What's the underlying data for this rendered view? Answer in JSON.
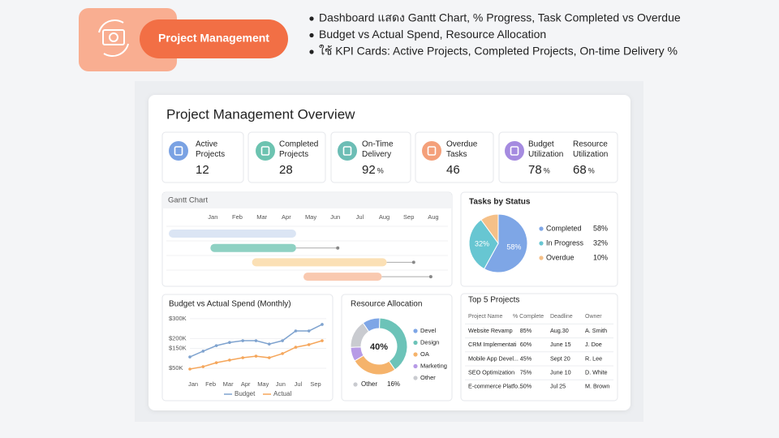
{
  "header": {
    "badge": "Project Management",
    "bullets": [
      "Dashboard แสดง Gantt Chart, % Progress, Task Completed vs Overdue",
      "Budget vs Actual Spend, Resource Allocation",
      "ใช้ KPI Cards: Active Projects, Completed Projects, On-time Delivery %"
    ]
  },
  "dashboard": {
    "title": "Project Management Overview",
    "kpis": [
      {
        "label": [
          "Active",
          "Projects"
        ],
        "value": 12,
        "color": "#7aa2e3"
      },
      {
        "label": [
          "Completed",
          "Projects"
        ],
        "value": 28,
        "color": "#6cc3b0"
      },
      {
        "label": [
          "On-Time",
          "Delivery"
        ],
        "value": 92,
        "unit": "%",
        "color": "#6cbdb5"
      },
      {
        "label": [
          "Overdue",
          "Tasks"
        ],
        "value": 46,
        "color": "#f4a07a"
      },
      {
        "label": [
          "Budget",
          "Utilization"
        ],
        "value": 78,
        "unit": "%",
        "color": "#a58be0"
      },
      {
        "label": [
          "Resource",
          "Utilization"
        ],
        "value": 68,
        "unit": "%"
      }
    ],
    "gantt": {
      "title": "Gantt Chart",
      "months": [
        "Jan",
        "Feb",
        "Mar",
        "Apr",
        "May",
        "Jun",
        "Jul",
        "Aug",
        "Sep",
        "Aug"
      ],
      "xlim": [
        -1.9,
        9.6
      ],
      "tasks": [
        {
          "start": -1.8,
          "end": 3.4,
          "color": "#dbe5f4"
        },
        {
          "start": -0.1,
          "end": 3.4,
          "line_end": 5.1,
          "color": "#8fd1c3"
        },
        {
          "start": 1.6,
          "end": 7.1,
          "line_end": 8.2,
          "color": "#fbe0b5"
        },
        {
          "start": 3.7,
          "end": 6.9,
          "line_end": 8.9,
          "color": "#f9c9b0"
        }
      ]
    },
    "status": {
      "title": "Tasks by Status",
      "names": [
        "Completed",
        "In Progress",
        "Overdue"
      ],
      "values": [
        58,
        32,
        10
      ],
      "value_labels": [
        "58%",
        "32%",
        "10%"
      ],
      "colors": [
        "#7ea6e6",
        "#67c6d2",
        "#f5c088"
      ]
    },
    "budget": {
      "title": "Budget vs Actual Spend (Monthly)",
      "ylim": [
        30000,
        320000
      ],
      "yticks": [
        {
          "value": 300000,
          "label": "$300K"
        },
        {
          "value": 200000,
          "label": "$200K"
        },
        {
          "value": 150000,
          "label": "$150K"
        },
        {
          "value": 50000,
          "label": "$50K"
        }
      ],
      "xtick_labels": [
        "Jan",
        "Feb",
        "Mar",
        "Apr",
        "May",
        "Jun",
        "Jul",
        "Sep"
      ],
      "series": [
        {
          "name": "Budget",
          "color": "#7fa3cf",
          "values": [
            107000,
            136000,
            164000,
            180000,
            189000,
            189000,
            172000,
            189000,
            238000,
            238000,
            271000
          ]
        },
        {
          "name": "Actual",
          "color": "#f5a65b",
          "values": [
            46000,
            58000,
            78000,
            91000,
            103000,
            111000,
            103000,
            124000,
            156000,
            169000,
            189000
          ]
        }
      ]
    },
    "resources": {
      "title": "Resource Allocation",
      "names": [
        "Devel",
        "Design",
        "OA",
        "Marketing",
        "Other"
      ],
      "values": [
        10,
        40,
        26,
        8,
        16
      ],
      "value_labels": [
        null,
        "40%",
        null,
        null,
        "16%"
      ],
      "colors": [
        "#7ea6e6",
        "#6cc3b8",
        "#f5b36b",
        "#b79be6",
        "#c9cbd0"
      ]
    },
    "top_projects": {
      "title": "Top 5 Projects",
      "columns": [
        "Project Name",
        "% Complete",
        "Deadline",
        "Owner"
      ],
      "rows": [
        [
          "Website Revamp",
          "85%",
          "Aug.30",
          "A. Smith"
        ],
        [
          "CRM Implementati",
          "60%",
          "June 15",
          "J. Doe"
        ],
        [
          "Mobile App Devel...",
          "45%",
          "Sept 20",
          "R. Lee"
        ],
        [
          "SEO Optimization",
          "75%",
          "June 10",
          "D. White"
        ],
        [
          "E-commerce Platfo...",
          "50%",
          "Jul 25",
          "M. Brown"
        ]
      ]
    }
  }
}
